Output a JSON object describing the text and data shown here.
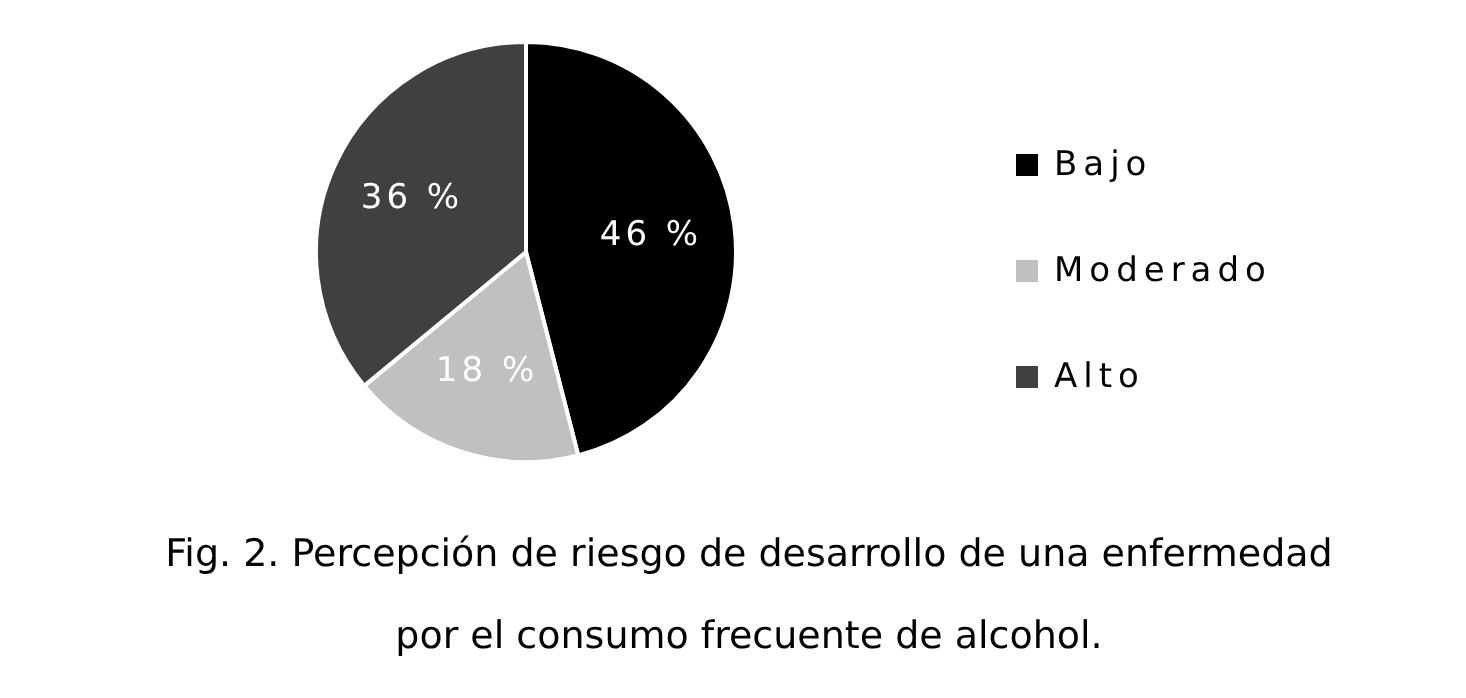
{
  "chart_data": {
    "type": "pie",
    "title": "Fig. 2. Percepción de riesgo de desarrollo de una enfermedad por el consumo frecuente de alcohol.",
    "categories": [
      "Bajo",
      "Moderado",
      "Alto"
    ],
    "values": [
      46,
      18,
      36
    ],
    "colors": [
      "#000000",
      "#c0c0c0",
      "#404040"
    ],
    "value_labels": [
      "46 %",
      "18 %",
      "36 %"
    ],
    "legend": "right"
  }
}
